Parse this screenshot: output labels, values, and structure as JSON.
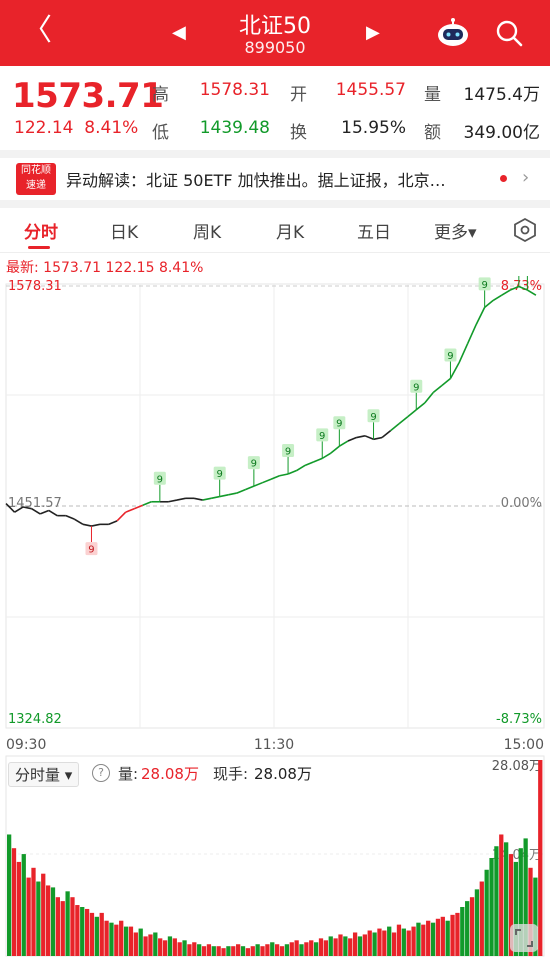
{
  "header": {
    "title": "北证50",
    "code": "899050",
    "back_glyph": "〈",
    "prev_glyph": "◀",
    "next_glyph": "▶",
    "bg_color": "#e8232a"
  },
  "quote": {
    "price": "1573.71",
    "change": "122.14",
    "change_pct": "8.41%",
    "rows": [
      {
        "label": "高",
        "value": "1578.31",
        "color": "red"
      },
      {
        "label": "开",
        "value": "1455.57",
        "color": "red"
      },
      {
        "label": "量",
        "value": "1475.4万",
        "color": "dark"
      },
      {
        "label": "低",
        "value": "1439.48",
        "color": "green"
      },
      {
        "label": "换",
        "value": "15.95%",
        "color": "dark"
      },
      {
        "label": "额",
        "value": "349.00亿",
        "color": "dark"
      }
    ]
  },
  "news": {
    "logo_line1": "同花顺",
    "logo_line2": "速递",
    "text": "异动解读：北证 50ETF 加快推出。据上证报，北京…",
    "arrow": "›"
  },
  "tabs": [
    {
      "label": "分时",
      "active": true
    },
    {
      "label": "日K",
      "active": false
    },
    {
      "label": "周K",
      "active": false
    },
    {
      "label": "月K",
      "active": false
    },
    {
      "label": "五日",
      "active": false
    },
    {
      "label": "更多▾",
      "active": false
    }
  ],
  "chart_info": "最新: 1573.71  122.15  8.41%",
  "chart_data": {
    "type": "line",
    "y_top": "1578.31",
    "y_mid": "1451.57",
    "y_bottom": "1324.82",
    "pct_top": "8.73%",
    "pct_mid": "0.00%",
    "pct_bottom": "-8.73%",
    "x_labels": [
      "09:30",
      "11:30",
      "15:00"
    ],
    "ylim": [
      1324.82,
      1578.31
    ],
    "series": [
      {
        "values": [
          1453,
          1448,
          1451,
          1450,
          1447,
          1449,
          1446,
          1446,
          1444,
          1441,
          1440,
          1441,
          1441,
          1443,
          1448,
          1450,
          1452,
          1454,
          1454,
          1454,
          1455,
          1456,
          1456,
          1455,
          1456,
          1457,
          1458,
          1459,
          1461,
          1463,
          1465,
          1467,
          1469,
          1470,
          1472,
          1475,
          1477,
          1479,
          1482,
          1486,
          1489,
          1491,
          1492,
          1490,
          1491,
          1495,
          1499,
          1503,
          1507,
          1511,
          1517,
          1521,
          1525,
          1534,
          1545,
          1556,
          1566,
          1570,
          1573,
          1576,
          1578,
          1576,
          1573
        ]
      }
    ],
    "signal_label": "9",
    "volume": {
      "selector": "分时量 ▾",
      "label1": "量:",
      "value1": "28.08万",
      "label2": "现手:",
      "value2": "28.08万",
      "max_label": "28.08万",
      "mid_label": "14.04万",
      "bars": [
        62,
        55,
        48,
        52,
        40,
        45,
        38,
        42,
        36,
        35,
        30,
        28,
        33,
        30,
        26,
        25,
        24,
        22,
        20,
        22,
        18,
        17,
        16,
        18,
        15,
        15,
        12,
        14,
        10,
        11,
        12,
        9,
        8,
        10,
        9,
        7,
        8,
        6,
        7,
        6,
        5,
        6,
        5,
        5,
        4,
        5,
        5,
        6,
        5,
        4,
        5,
        6,
        5,
        6,
        7,
        6,
        5,
        6,
        7,
        8,
        6,
        7,
        8,
        7,
        9,
        8,
        10,
        9,
        11,
        10,
        9,
        12,
        10,
        11,
        13,
        12,
        14,
        13,
        15,
        12,
        16,
        14,
        13,
        15,
        17,
        16,
        18,
        17,
        19,
        20,
        18,
        21,
        22,
        25,
        28,
        30,
        34,
        38,
        44,
        50,
        56,
        62,
        58,
        52,
        48,
        55,
        60,
        45,
        40,
        100
      ]
    }
  }
}
